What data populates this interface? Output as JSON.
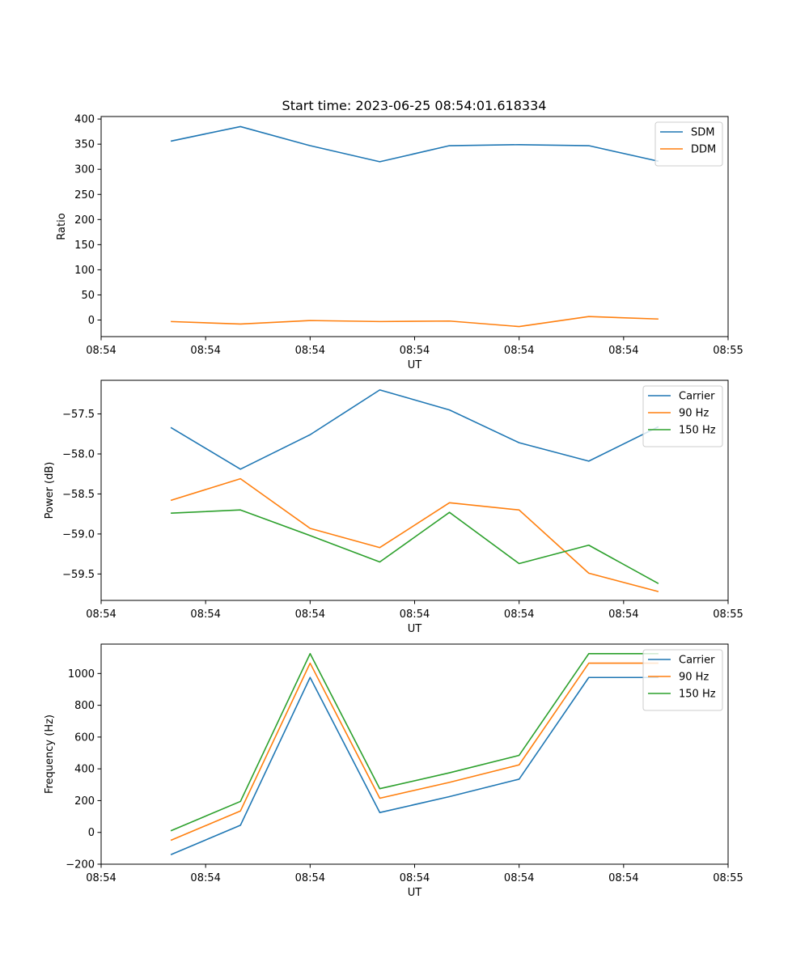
{
  "figure_title": "Start time: 2023-06-25 08:54:01.618334",
  "colors": {
    "blue": "#1f77b4",
    "orange": "#ff7f0e",
    "green": "#2ca02c",
    "axes": "#000000",
    "legend_border": "#cccccc"
  },
  "chart_data": [
    {
      "type": "line",
      "title": "Start time: 2023-06-25 08:54:01.618334",
      "xlabel": "UT",
      "ylabel": "Ratio",
      "x": [
        1,
        2,
        3,
        4,
        5,
        6,
        7,
        8
      ],
      "xlim": [
        0,
        9
      ],
      "x_ticks": [
        0,
        1.5,
        3,
        4.5,
        6,
        7.5,
        9
      ],
      "x_tick_labels": [
        "08:54",
        "08:54",
        "08:54",
        "08:54",
        "08:54",
        "08:54",
        "08:55"
      ],
      "ylim": [
        -33,
        405
      ],
      "y_ticks": [
        0,
        50,
        100,
        150,
        200,
        250,
        300,
        350,
        400
      ],
      "y_tick_labels": [
        "0",
        "50",
        "100",
        "150",
        "200",
        "250",
        "300",
        "350",
        "400"
      ],
      "legend_position": "top-right",
      "grid": false,
      "series": [
        {
          "name": "SDM",
          "color": "#1f77b4",
          "values": [
            356,
            385,
            347,
            315,
            347,
            349,
            347,
            316
          ]
        },
        {
          "name": "DDM",
          "color": "#ff7f0e",
          "values": [
            -3,
            -8,
            -1,
            -3,
            -2,
            -13,
            7,
            2
          ]
        }
      ]
    },
    {
      "type": "line",
      "title": "",
      "xlabel": "UT",
      "ylabel": "Power (dB)",
      "x": [
        1,
        2,
        3,
        4,
        5,
        6,
        7,
        8
      ],
      "xlim": [
        0,
        9
      ],
      "x_ticks": [
        0,
        1.5,
        3,
        4.5,
        6,
        7.5,
        9
      ],
      "x_tick_labels": [
        "08:54",
        "08:54",
        "08:54",
        "08:54",
        "08:54",
        "08:54",
        "08:55"
      ],
      "ylim": [
        -59.83,
        -57.08
      ],
      "y_ticks": [
        -57.5,
        -58.0,
        -58.5,
        -59.0,
        -59.5
      ],
      "y_tick_labels": [
        "−57.5",
        "−58.0",
        "−58.5",
        "−59.0",
        "−59.5"
      ],
      "legend_position": "top-right",
      "grid": false,
      "series": [
        {
          "name": "Carrier",
          "color": "#1f77b4",
          "values": [
            -57.67,
            -58.19,
            -57.76,
            -57.2,
            -57.45,
            -57.86,
            -58.09,
            -57.66
          ]
        },
        {
          "name": "90 Hz",
          "color": "#ff7f0e",
          "values": [
            -58.58,
            -58.31,
            -58.93,
            -59.17,
            -58.61,
            -58.7,
            -59.49,
            -59.72
          ]
        },
        {
          "name": "150 Hz",
          "color": "#2ca02c",
          "values": [
            -58.74,
            -58.7,
            -59.02,
            -59.35,
            -58.73,
            -59.37,
            -59.14,
            -59.62
          ]
        }
      ]
    },
    {
      "type": "line",
      "title": "",
      "xlabel": "UT",
      "ylabel": "Frequency (Hz)",
      "x": [
        1,
        2,
        3,
        4,
        5,
        6,
        7,
        8
      ],
      "xlim": [
        0,
        9
      ],
      "x_ticks": [
        0,
        1.5,
        3,
        4.5,
        6,
        7.5,
        9
      ],
      "x_tick_labels": [
        "08:54",
        "08:54",
        "08:54",
        "08:54",
        "08:54",
        "08:54",
        "08:55"
      ],
      "ylim": [
        -200,
        1185
      ],
      "y_ticks": [
        -200,
        0,
        200,
        400,
        600,
        800,
        1000
      ],
      "y_tick_labels": [
        "−200",
        "0",
        "200",
        "400",
        "600",
        "800",
        "1000"
      ],
      "legend_position": "top-right",
      "grid": false,
      "series": [
        {
          "name": "Carrier",
          "color": "#1f77b4",
          "values": [
            -140,
            45,
            975,
            125,
            225,
            335,
            975,
            975
          ]
        },
        {
          "name": "90 Hz",
          "color": "#ff7f0e",
          "values": [
            -50,
            135,
            1065,
            215,
            315,
            425,
            1065,
            1065
          ]
        },
        {
          "name": "150 Hz",
          "color": "#2ca02c",
          "values": [
            10,
            195,
            1125,
            275,
            375,
            485,
            1125,
            1125
          ]
        }
      ]
    }
  ]
}
